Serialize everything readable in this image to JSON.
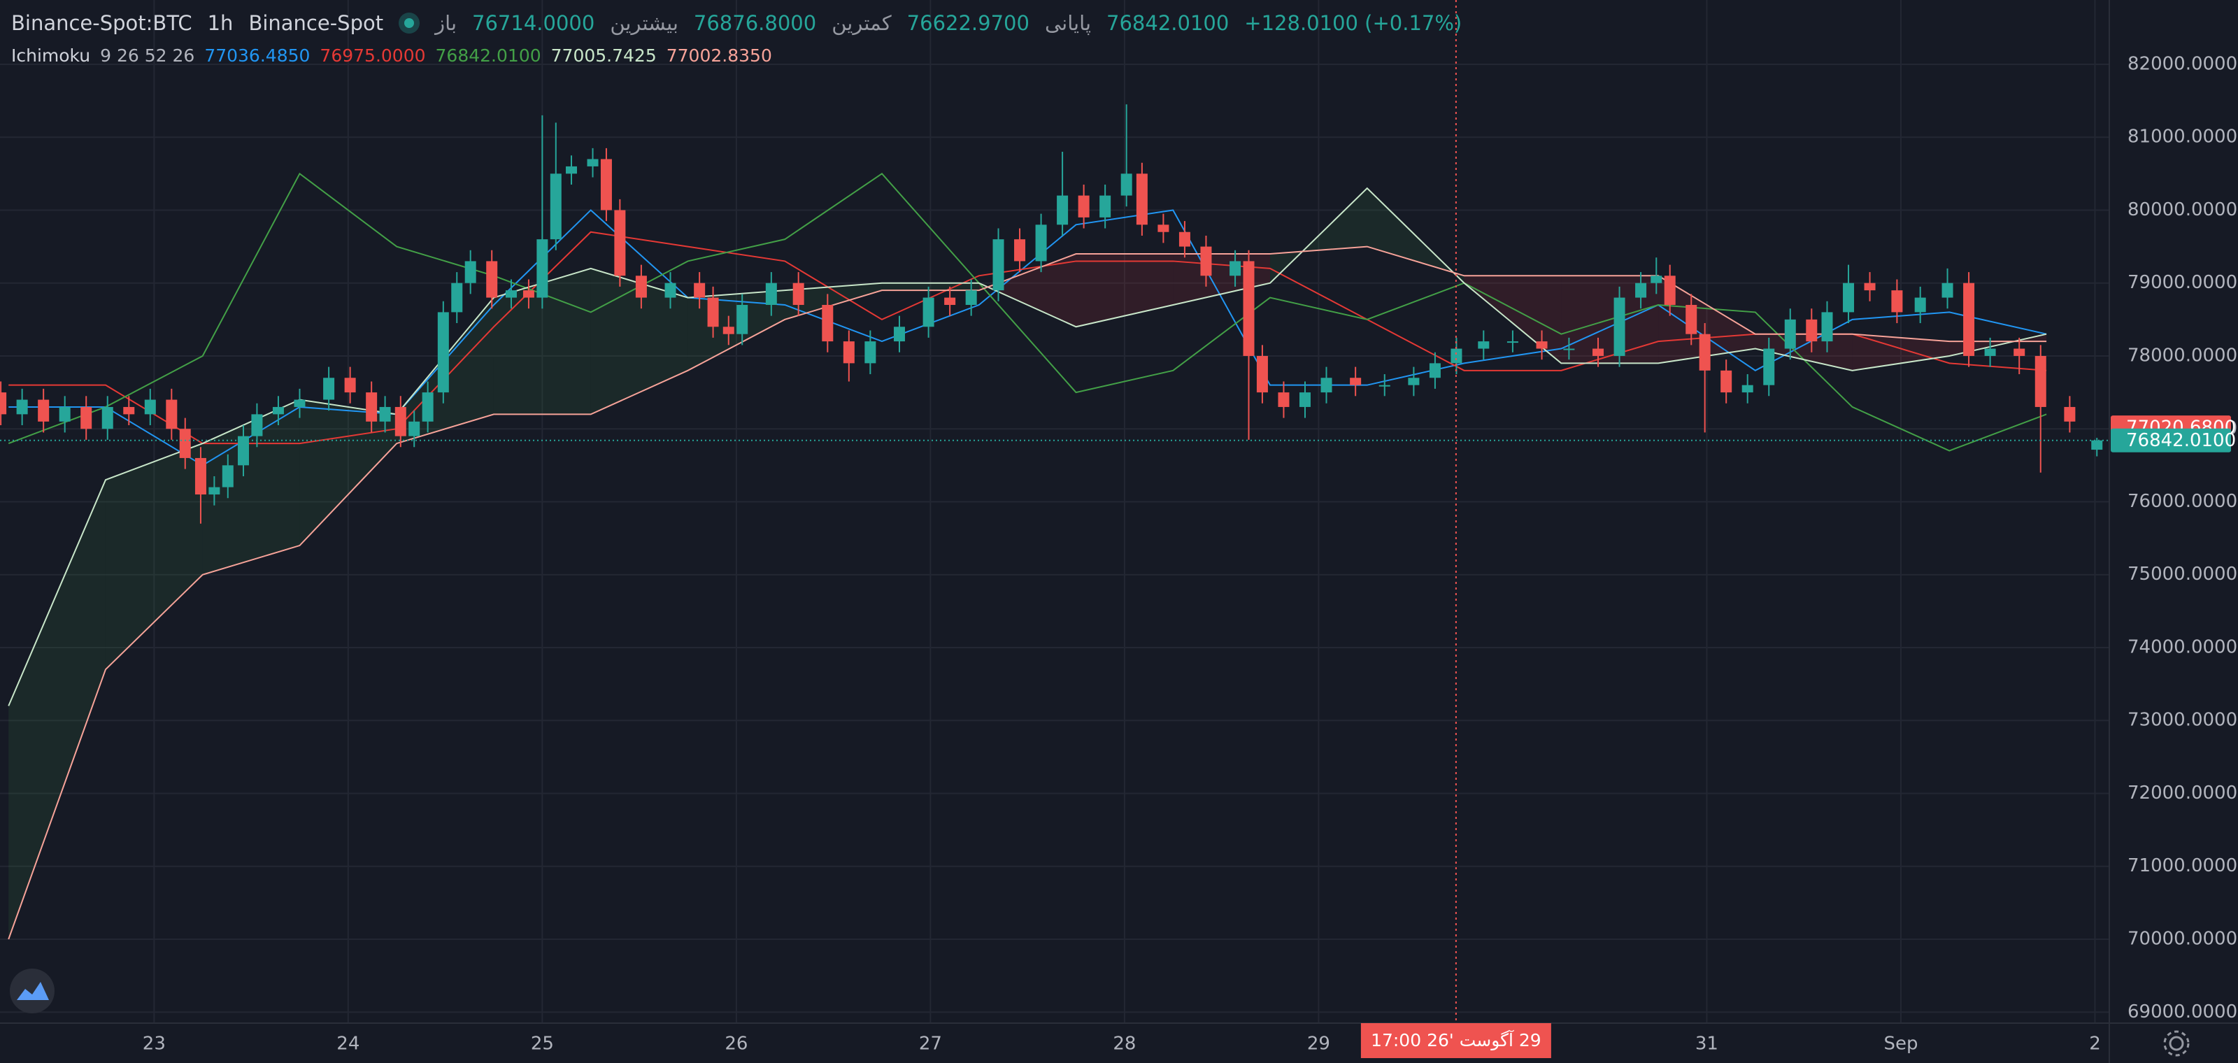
{
  "chart_data": {
    "type": "candlestick",
    "symbol": "Binance-Spot:BTC",
    "interval": "1h",
    "exchange": "Binance-Spot",
    "quote": {
      "open_label": "باز",
      "open": "76714.0000",
      "high_label": "بیشترین",
      "high": "76876.8000",
      "low_label": "کمترین",
      "low": "76622.9700",
      "close_label": "پایانی",
      "close": "76842.0100",
      "change": "+128.0100 (+0.17%)"
    },
    "up_color": "#26a69a",
    "down_color": "#ef5350",
    "xlim": [
      22.206,
      33.074
    ],
    "ylim": [
      68849,
      82882
    ],
    "grid": true,
    "xticks": [
      23,
      24,
      25,
      26,
      27,
      28,
      29,
      31,
      {
        "value": 32,
        "label": "Sep"
      },
      {
        "value": 33,
        "label": "2"
      }
    ],
    "yticks": [
      {
        "value": 69000,
        "label": "69000.0000"
      },
      {
        "value": 70000,
        "label": "70000.0000"
      },
      {
        "value": 71000,
        "label": "71000.0000"
      },
      {
        "value": 72000,
        "label": "72000.0000"
      },
      {
        "value": 73000,
        "label": "73000.0000"
      },
      {
        "value": 74000,
        "label": "74000.0000"
      },
      {
        "value": 75000,
        "label": "75000.0000"
      },
      {
        "value": 76000,
        "label": "76000.0000"
      },
      {
        "value": 77000,
        "label": "77000.0000"
      },
      {
        "value": 78000,
        "label": "78000.0000"
      },
      {
        "value": 79000,
        "label": "79000.0000"
      },
      {
        "value": 80000,
        "label": "80000.0000"
      },
      {
        "value": 81000,
        "label": "81000.0000"
      },
      {
        "value": 82000,
        "label": "82000.0000"
      }
    ],
    "x": [
      22.21,
      22.32,
      22.43,
      22.54,
      22.65,
      22.76,
      22.87,
      22.98,
      23.09,
      23.16,
      23.24,
      23.31,
      23.38,
      23.46,
      23.53,
      23.64,
      23.75,
      23.9,
      24.01,
      24.12,
      24.19,
      24.27,
      24.34,
      24.41,
      24.49,
      24.56,
      24.63,
      24.74,
      24.84,
      24.93,
      25.0,
      25.07,
      25.15,
      25.26,
      25.33,
      25.4,
      25.51,
      25.66,
      25.81,
      25.88,
      25.96,
      26.03,
      26.18,
      26.32,
      26.47,
      26.58,
      26.69,
      26.84,
      26.99,
      27.1,
      27.21,
      27.35,
      27.46,
      27.57,
      27.68,
      27.79,
      27.9,
      28.01,
      28.09,
      28.2,
      28.31,
      28.42,
      28.57,
      28.64,
      28.71,
      28.82,
      28.93,
      29.04,
      29.19,
      29.34,
      29.49,
      29.6,
      29.71,
      29.85,
      30.0,
      30.15,
      30.29,
      30.44,
      30.55,
      30.66,
      30.74,
      30.81,
      30.92,
      30.99,
      31.1,
      31.21,
      31.32,
      31.43,
      31.54,
      31.62,
      31.73,
      31.84,
      31.98,
      32.1,
      32.24,
      32.35,
      32.46,
      32.61,
      32.72,
      32.87,
      33.01
    ],
    "open": [
      77500,
      77200,
      77400,
      77100,
      77300,
      77000,
      77300,
      77200,
      77400,
      77000,
      76600,
      76100,
      76200,
      76500,
      76900,
      77200,
      77300,
      77400,
      77700,
      77500,
      77100,
      77300,
      76900,
      77100,
      77500,
      78600,
      79000,
      79300,
      78800,
      78900,
      78800,
      79600,
      80500,
      80600,
      80700,
      80000,
      79100,
      78800,
      79000,
      78800,
      78400,
      78300,
      78700,
      79000,
      78700,
      78200,
      77900,
      78200,
      78400,
      78800,
      78700,
      78900,
      79600,
      79300,
      79800,
      80200,
      79900,
      80200,
      80500,
      79800,
      79700,
      79500,
      79100,
      79300,
      78000,
      77500,
      77300,
      77500,
      77700,
      77600,
      77600,
      77700,
      77900,
      78100,
      78200,
      78200,
      78100,
      78100,
      78000,
      78800,
      79000,
      79100,
      78700,
      78300,
      77800,
      77500,
      77600,
      78100,
      78500,
      78200,
      78600,
      79000,
      78900,
      78600,
      78800,
      79000,
      78000,
      78100,
      78000,
      77300,
      76714
    ],
    "high": [
      77650,
      77550,
      77550,
      77450,
      77450,
      77450,
      77450,
      77550,
      77550,
      77150,
      76750,
      76350,
      76650,
      77050,
      77350,
      77450,
      77550,
      77850,
      77850,
      77650,
      77450,
      77450,
      77250,
      77650,
      78750,
      79150,
      79450,
      79450,
      79050,
      79050,
      81300,
      81200,
      80750,
      80850,
      80850,
      80150,
      79250,
      79150,
      79150,
      78950,
      78550,
      78850,
      79150,
      79150,
      78850,
      78350,
      78350,
      78550,
      78950,
      78950,
      79050,
      79750,
      79750,
      79950,
      80800,
      80350,
      80350,
      81450,
      80650,
      79950,
      79850,
      79650,
      79450,
      79450,
      78150,
      77650,
      77650,
      77850,
      77850,
      77750,
      77850,
      78050,
      78250,
      78350,
      78350,
      78350,
      78250,
      78250,
      78950,
      79150,
      79350,
      79250,
      78850,
      78450,
      77950,
      77750,
      78250,
      78650,
      78650,
      78750,
      79250,
      79150,
      79050,
      78950,
      79200,
      79150,
      78250,
      78250,
      78150,
      77450,
      76876.8
    ],
    "low": [
      77050,
      77050,
      76950,
      76950,
      76850,
      76850,
      77050,
      77050,
      76850,
      76450,
      75700,
      75950,
      76050,
      76350,
      76750,
      77050,
      77150,
      77250,
      77350,
      76950,
      76950,
      76750,
      76750,
      76950,
      77350,
      78450,
      78850,
      78650,
      78650,
      78650,
      78650,
      79450,
      80350,
      80450,
      79850,
      78950,
      78650,
      78650,
      78650,
      78250,
      78150,
      78150,
      78550,
      78550,
      78050,
      77650,
      77750,
      78050,
      78250,
      78550,
      78550,
      78750,
      79150,
      79150,
      79650,
      79750,
      79750,
      80050,
      79650,
      79550,
      79350,
      78950,
      78950,
      76850,
      77350,
      77150,
      77150,
      77350,
      77450,
      77450,
      77450,
      77550,
      77750,
      77950,
      78050,
      77950,
      77950,
      77850,
      77850,
      78650,
      78850,
      78550,
      78150,
      76950,
      77350,
      77350,
      77450,
      77950,
      78050,
      78050,
      78450,
      78750,
      78450,
      78450,
      78650,
      77850,
      77850,
      77750,
      76400,
      76950,
      76622.97
    ],
    "close": [
      77200,
      77400,
      77100,
      77300,
      77000,
      77300,
      77200,
      77400,
      77000,
      76600,
      76100,
      76200,
      76500,
      76900,
      77200,
      77300,
      77400,
      77700,
      77500,
      77100,
      77300,
      76900,
      77100,
      77500,
      78600,
      79000,
      79300,
      78800,
      78900,
      78800,
      79600,
      80500,
      80600,
      80700,
      80000,
      79100,
      78800,
      79000,
      78800,
      78400,
      78300,
      78700,
      79000,
      78700,
      78200,
      77900,
      78200,
      78400,
      78800,
      78700,
      78900,
      79600,
      79300,
      79800,
      80200,
      79900,
      80200,
      80500,
      79800,
      79700,
      79500,
      79100,
      79300,
      78000,
      77500,
      77300,
      77500,
      77700,
      77600,
      77600,
      77700,
      77900,
      78100,
      78200,
      78200,
      78100,
      78100,
      78000,
      78800,
      79000,
      79100,
      78700,
      78300,
      77800,
      77500,
      77600,
      78100,
      78500,
      78200,
      78600,
      79000,
      78900,
      78600,
      78800,
      79000,
      78000,
      78100,
      78000,
      77300,
      77100,
      76842.01
    ],
    "ichimoku": {
      "name": "Ichimoku",
      "params": "9 26 52 26",
      "cloud_up_color": "rgba(67,160,71,0.12)",
      "cloud_down_color": "rgba(242,54,69,0.12)",
      "x": [
        22.25,
        22.75,
        23.25,
        23.75,
        24.25,
        24.75,
        25.25,
        25.75,
        26.25,
        26.75,
        27.25,
        27.75,
        28.25,
        28.75,
        29.25,
        29.75,
        30.25,
        30.75,
        31.25,
        31.75,
        32.25,
        32.75
      ],
      "series": [
        {
          "color": "#2196f3",
          "legend_value": "77036.4850",
          "values": [
            77300,
            77300,
            76500,
            77300,
            77200,
            78700,
            80000,
            78800,
            78700,
            78200,
            78700,
            79800,
            80000,
            77600,
            77600,
            77900,
            78100,
            78700,
            77800,
            78500,
            78600,
            78300
          ]
        },
        {
          "color": "#e53935",
          "legend_value": "76975.0000",
          "values": [
            77600,
            77600,
            76800,
            76800,
            77000,
            78400,
            79700,
            79500,
            79300,
            78500,
            79100,
            79300,
            79300,
            79200,
            78500,
            77800,
            77800,
            78200,
            78300,
            78300,
            77900,
            77800
          ]
        },
        {
          "color": "#43a047",
          "legend_value": "76842.0100",
          "values": [
            76800,
            77300,
            78000,
            80500,
            79500,
            79100,
            78600,
            79300,
            79600,
            80500,
            79000,
            77500,
            77800,
            78800,
            78500,
            79000,
            78300,
            78700,
            78600,
            77300,
            76700,
            77200
          ]
        },
        {
          "color": "#c8e6c9",
          "legend_value": "77005.7425",
          "values": [
            73200,
            76300,
            76800,
            77400,
            77200,
            78800,
            79200,
            78800,
            78900,
            79000,
            79000,
            78400,
            78700,
            79000,
            80300,
            79000,
            77900,
            77900,
            78100,
            77800,
            78000,
            78300
          ]
        },
        {
          "color": "#f7a399",
          "legend_value": "77002.8350",
          "values": [
            70000,
            73700,
            75000,
            75400,
            76800,
            77200,
            77200,
            77800,
            78500,
            78900,
            78900,
            79400,
            79400,
            79400,
            79500,
            79100,
            79100,
            79100,
            78300,
            78300,
            78200,
            78200
          ]
        }
      ]
    },
    "price_labels": [
      {
        "value": 77020.68,
        "label": "77020.6800",
        "color": "#ef5350"
      },
      {
        "value": 76842.01,
        "label": "76842.0100",
        "color": "#26a69a"
      }
    ],
    "last_price_line": 76842.01,
    "crosshair": {
      "x": 29.708,
      "label": "29 آگوست '26  17:00",
      "color": "#ef5350"
    }
  }
}
